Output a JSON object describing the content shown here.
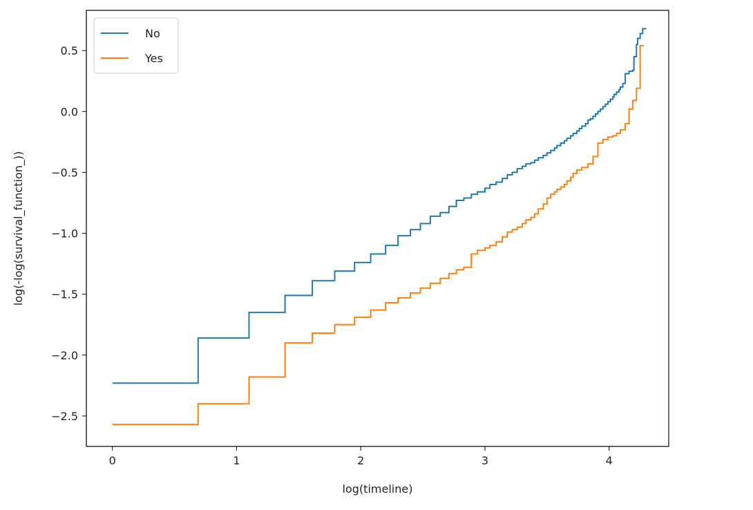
{
  "chart_data": {
    "type": "line",
    "step": true,
    "title": "",
    "xlabel": "log(timeline)",
    "ylabel": "log(-log(survival_function_))",
    "xlim": [
      -0.21,
      4.48
    ],
    "ylim": [
      -2.75,
      0.83
    ],
    "xticks": [
      0,
      1,
      2,
      3,
      4
    ],
    "xtick_labels": [
      "0",
      "1",
      "2",
      "3",
      "4"
    ],
    "yticks": [
      -2.5,
      -2.0,
      -1.5,
      -1.0,
      -0.5,
      0.0,
      0.5
    ],
    "ytick_labels": [
      "−2.5",
      "−2.0",
      "−1.5",
      "−1.0",
      "−0.5",
      "0.0",
      "0.5"
    ],
    "grid": false,
    "legend_position": "top-left",
    "series": [
      {
        "name": "No",
        "color": "#1f77b4",
        "x": [
          0.0,
          0.69,
          1.1,
          1.39,
          1.61,
          1.79,
          1.95,
          2.08,
          2.2,
          2.3,
          2.4,
          2.48,
          2.56,
          2.64,
          2.71,
          2.77,
          2.83,
          2.89,
          2.94,
          3.0,
          3.04,
          3.09,
          3.14,
          3.18,
          3.22,
          3.26,
          3.3,
          3.33,
          3.37,
          3.4,
          3.43,
          3.47,
          3.5,
          3.53,
          3.56,
          3.58,
          3.61,
          3.64,
          3.66,
          3.69,
          3.71,
          3.74,
          3.76,
          3.78,
          3.81,
          3.83,
          3.85,
          3.87,
          3.89,
          3.91,
          3.93,
          3.95,
          3.97,
          3.99,
          4.01,
          4.03,
          4.04,
          4.06,
          4.08,
          4.09,
          4.11,
          4.13,
          4.16,
          4.19,
          4.2,
          4.22,
          4.23,
          4.25,
          4.27
        ],
        "values": [
          -2.23,
          -1.86,
          -1.65,
          -1.51,
          -1.39,
          -1.31,
          -1.24,
          -1.17,
          -1.1,
          -1.02,
          -0.97,
          -0.92,
          -0.86,
          -0.83,
          -0.78,
          -0.73,
          -0.71,
          -0.68,
          -0.66,
          -0.63,
          -0.6,
          -0.58,
          -0.55,
          -0.52,
          -0.5,
          -0.47,
          -0.45,
          -0.43,
          -0.42,
          -0.4,
          -0.38,
          -0.36,
          -0.34,
          -0.32,
          -0.3,
          -0.28,
          -0.26,
          -0.24,
          -0.22,
          -0.2,
          -0.18,
          -0.16,
          -0.14,
          -0.12,
          -0.1,
          -0.07,
          -0.06,
          -0.04,
          -0.02,
          0.0,
          0.02,
          0.04,
          0.06,
          0.08,
          0.1,
          0.12,
          0.14,
          0.16,
          0.18,
          0.2,
          0.23,
          0.31,
          0.33,
          0.34,
          0.45,
          0.55,
          0.6,
          0.64,
          0.68
        ]
      },
      {
        "name": "Yes",
        "color": "#ff7f0e",
        "x": [
          0.0,
          0.69,
          1.1,
          1.39,
          1.61,
          1.79,
          1.95,
          2.08,
          2.2,
          2.3,
          2.4,
          2.48,
          2.56,
          2.64,
          2.71,
          2.77,
          2.83,
          2.89,
          2.94,
          3.0,
          3.04,
          3.09,
          3.14,
          3.18,
          3.22,
          3.26,
          3.3,
          3.33,
          3.37,
          3.4,
          3.43,
          3.47,
          3.5,
          3.53,
          3.56,
          3.58,
          3.61,
          3.64,
          3.66,
          3.69,
          3.71,
          3.74,
          3.78,
          3.83,
          3.87,
          3.91,
          3.95,
          3.99,
          4.03,
          4.06,
          4.09,
          4.13,
          4.16,
          4.19,
          4.22,
          4.25
        ],
        "values": [
          -2.57,
          -2.4,
          -2.18,
          -1.9,
          -1.82,
          -1.75,
          -1.69,
          -1.63,
          -1.57,
          -1.53,
          -1.49,
          -1.45,
          -1.41,
          -1.37,
          -1.33,
          -1.3,
          -1.28,
          -1.17,
          -1.14,
          -1.12,
          -1.1,
          -1.07,
          -1.03,
          -0.99,
          -0.97,
          -0.95,
          -0.92,
          -0.89,
          -0.87,
          -0.84,
          -0.8,
          -0.76,
          -0.71,
          -0.68,
          -0.66,
          -0.64,
          -0.62,
          -0.6,
          -0.57,
          -0.54,
          -0.51,
          -0.48,
          -0.46,
          -0.43,
          -0.37,
          -0.26,
          -0.23,
          -0.21,
          -0.2,
          -0.18,
          -0.15,
          -0.1,
          0.02,
          0.09,
          0.19,
          0.54
        ]
      }
    ]
  }
}
